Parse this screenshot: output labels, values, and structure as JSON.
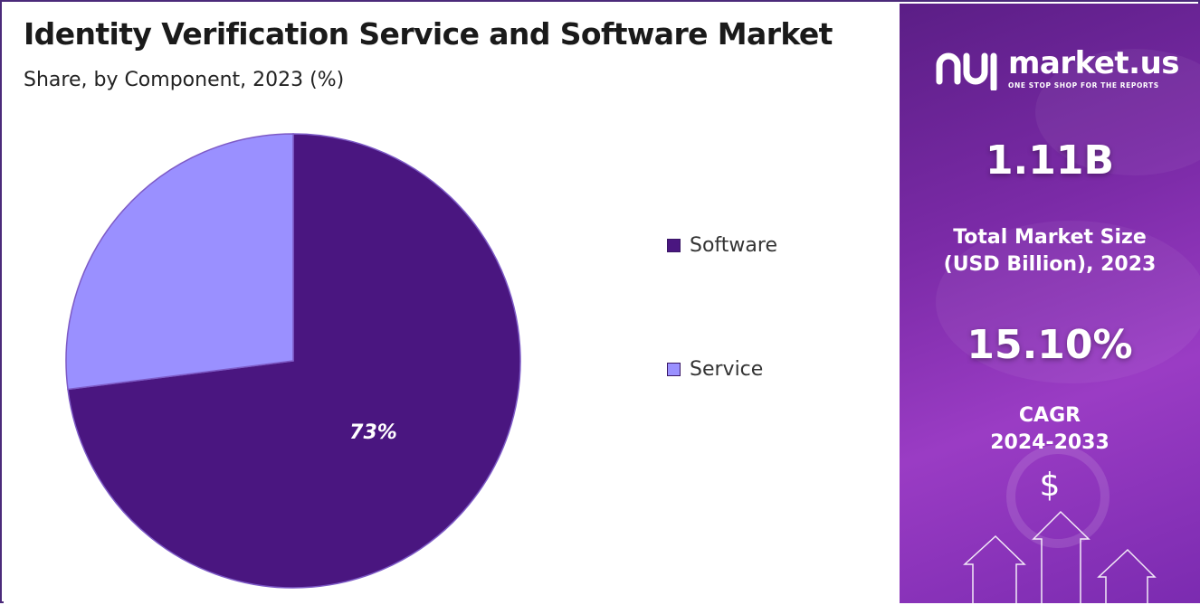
{
  "title": "Identity Verification Service and Software Market",
  "subtitle": "Share, by Component, 2023 (%)",
  "chart_data": {
    "type": "pie",
    "categories": [
      "Software",
      "Service"
    ],
    "values": [
      73,
      27
    ],
    "data_labels": [
      "73%",
      ""
    ],
    "colors": [
      "#4a1680",
      "#9a90ff"
    ],
    "legend_position": "right"
  },
  "sidebar": {
    "brand_name": "market.us",
    "brand_tagline": "ONE STOP SHOP FOR THE REPORTS",
    "market_size_value": "1.11B",
    "market_size_label_1": "Total Market Size",
    "market_size_label_2": "(USD Billion), 2023",
    "cagr_value": "15.10%",
    "cagr_label_1": "CAGR",
    "cagr_label_2": "2024-2033",
    "currency_symbol": "$",
    "logo_icon": "market-us-logo-icon",
    "decor_icon": "up-arrows-icon"
  }
}
